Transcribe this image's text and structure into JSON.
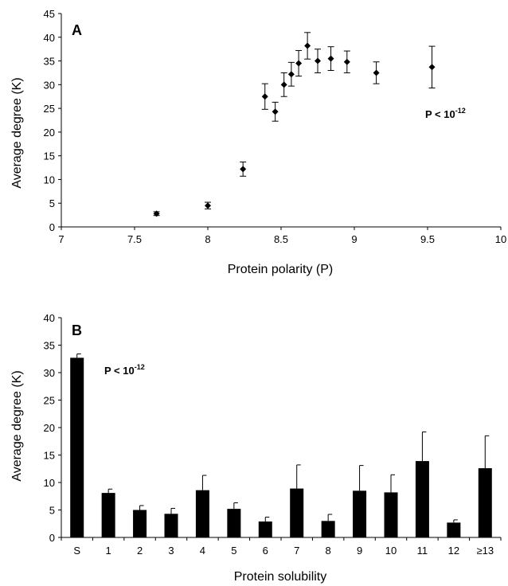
{
  "chart_data": [
    {
      "type": "scatter",
      "panel_label": "A",
      "xlabel": "Protein polarity (P)",
      "ylabel": "Average degree (K)",
      "xlim": [
        7,
        10
      ],
      "ylim": [
        0,
        45
      ],
      "x_ticks": [
        7,
        7.5,
        8,
        8.5,
        9,
        9.5,
        10
      ],
      "x_tick_labels": [
        "7",
        "7.5",
        "8",
        "8.5",
        "9",
        "9.5",
        "10"
      ],
      "y_ticks": [
        0,
        5,
        10,
        15,
        20,
        25,
        30,
        35,
        40,
        45
      ],
      "y_tick_labels": [
        "0",
        "5",
        "10",
        "15",
        "20",
        "25",
        "30",
        "35",
        "40",
        "45"
      ],
      "annotation": {
        "prefix": "P < 10",
        "exponent": "-12"
      },
      "grid": false,
      "marker": "diamond",
      "points": [
        {
          "x": 7.65,
          "y": 2.8,
          "err": 0.4
        },
        {
          "x": 8.0,
          "y": 4.5,
          "err": 0.7
        },
        {
          "x": 8.24,
          "y": 12.2,
          "err": 1.5
        },
        {
          "x": 8.39,
          "y": 27.5,
          "err": 2.7
        },
        {
          "x": 8.46,
          "y": 24.3,
          "err": 2.0
        },
        {
          "x": 8.52,
          "y": 30.0,
          "err": 2.5
        },
        {
          "x": 8.57,
          "y": 32.2,
          "err": 2.5
        },
        {
          "x": 8.62,
          "y": 34.5,
          "err": 2.7
        },
        {
          "x": 8.68,
          "y": 38.2,
          "err": 2.8
        },
        {
          "x": 8.75,
          "y": 35.0,
          "err": 2.5
        },
        {
          "x": 8.84,
          "y": 35.5,
          "err": 2.5
        },
        {
          "x": 8.95,
          "y": 34.8,
          "err": 2.3
        },
        {
          "x": 9.15,
          "y": 32.5,
          "err": 2.3
        },
        {
          "x": 9.53,
          "y": 33.7,
          "err": 4.4
        }
      ]
    },
    {
      "type": "bar",
      "panel_label": "B",
      "xlabel": "Protein solubility",
      "ylabel": "Average degree (K)",
      "ylim": [
        0,
        40
      ],
      "y_ticks": [
        0,
        5,
        10,
        15,
        20,
        25,
        30,
        35,
        40
      ],
      "y_tick_labels": [
        "0",
        "5",
        "10",
        "15",
        "20",
        "25",
        "30",
        "35",
        "40"
      ],
      "annotation": {
        "prefix": "P < 10",
        "exponent": "-12"
      },
      "grid": false,
      "categories": [
        "S",
        "1",
        "2",
        "3",
        "4",
        "5",
        "6",
        "7",
        "8",
        "9",
        "10",
        "11",
        "12",
        "≥13"
      ],
      "values": [
        32.7,
        8.1,
        5.0,
        4.3,
        8.6,
        5.2,
        2.9,
        8.9,
        3.0,
        8.5,
        8.2,
        13.9,
        2.7,
        12.6
      ],
      "errors": [
        0.7,
        0.7,
        0.8,
        1.0,
        2.7,
        1.1,
        0.8,
        4.3,
        1.2,
        4.6,
        3.2,
        5.3,
        0.5,
        5.9
      ],
      "bar_color": "#000000"
    }
  ]
}
